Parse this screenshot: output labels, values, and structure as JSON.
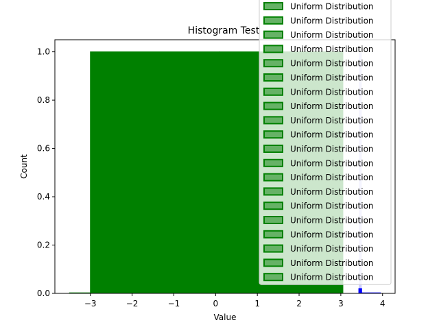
{
  "chart_data": {
    "type": "bar",
    "title": "Histogram Test",
    "xlabel": "Value",
    "ylabel": "Count",
    "xlim": [
      -3.85,
      4.3
    ],
    "ylim": [
      0,
      1.05
    ],
    "xticks": [
      -3,
      -2,
      -1,
      0,
      1,
      2,
      3,
      4
    ],
    "yticks": [
      0.0,
      0.2,
      0.4,
      0.6,
      0.8,
      1.0
    ],
    "xtick_labels": [
      "−3",
      "−2",
      "−1",
      "0",
      "1",
      "2",
      "3",
      "4"
    ],
    "ytick_labels": [
      "0.0",
      "0.2",
      "0.4",
      "0.6",
      "0.8",
      "1.0"
    ],
    "grid": false,
    "legend_position": "upper right",
    "colors": {
      "uniform_fill": "#008000",
      "uniform_edge": "#008000",
      "legend_patch_fill": "#66b266",
      "blue_bar": "#0000ff",
      "blue_bar_fill": "#ccccff"
    },
    "bars": [
      {
        "x0": -3.5,
        "x1": -3.0,
        "value": 0.0,
        "style": "uniform"
      },
      {
        "x0": -3.0,
        "x1": 0.1,
        "value": 1.0,
        "style": "uniform"
      },
      {
        "x0": 0.1,
        "x1": 3.05,
        "value": 1.0,
        "style": "uniform"
      },
      {
        "x0": 3.43,
        "x1": 3.5,
        "value": 1.0,
        "style": "blue-light"
      },
      {
        "x0": 3.43,
        "x1": 3.5,
        "value": 0.02,
        "style": "blue-dark"
      },
      {
        "x0": 3.5,
        "x1": 3.95,
        "value": 0.0,
        "style": "blue-dark"
      }
    ],
    "series": [
      {
        "name": "Uniform Distribution"
      },
      {
        "name": "Uniform Distribution"
      },
      {
        "name": "Uniform Distribution"
      },
      {
        "name": "Uniform Distribution"
      },
      {
        "name": "Uniform Distribution"
      },
      {
        "name": "Uniform Distribution"
      },
      {
        "name": "Uniform Distribution"
      },
      {
        "name": "Uniform Distribution"
      },
      {
        "name": "Uniform Distribution"
      },
      {
        "name": "Uniform Distribution"
      },
      {
        "name": "Uniform Distribution"
      },
      {
        "name": "Uniform Distribution"
      },
      {
        "name": "Uniform Distribution"
      },
      {
        "name": "Uniform Distribution"
      },
      {
        "name": "Uniform Distribution"
      },
      {
        "name": "Uniform Distribution"
      },
      {
        "name": "Uniform Distribution"
      },
      {
        "name": "Uniform Distribution"
      },
      {
        "name": "Uniform Distribution"
      },
      {
        "name": "Uniform Distribution"
      }
    ]
  }
}
